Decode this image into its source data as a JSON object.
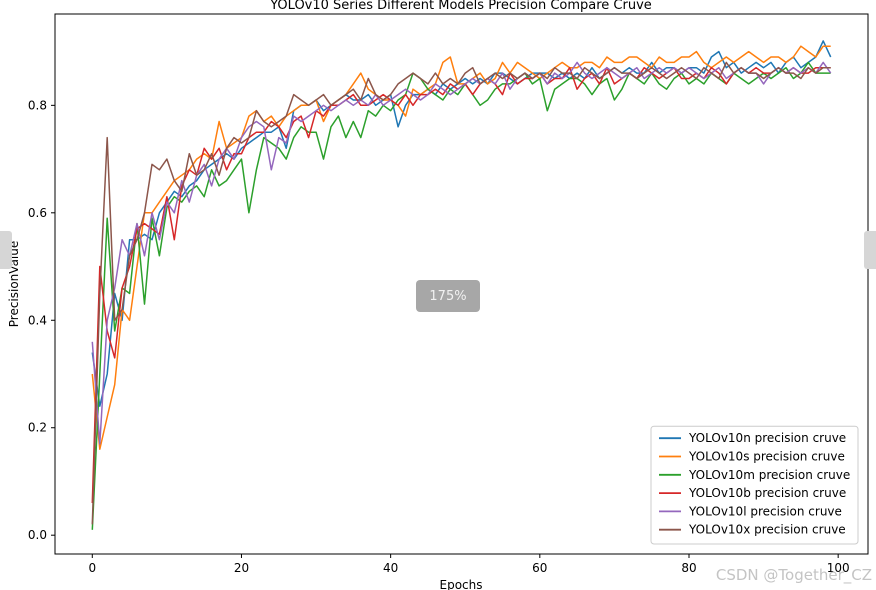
{
  "viewer": {
    "zoom": "175%",
    "watermark": "CSDN @Together_CZ"
  },
  "chart_data": {
    "type": "line",
    "title": "YOLOv10 Series Different Models Precision Compare Cruve",
    "xlabel": "Epochs",
    "ylabel": "PrecisionValue",
    "xlim": [
      -5,
      104
    ],
    "ylim": [
      -0.035,
      0.97
    ],
    "xticks": [
      0,
      20,
      40,
      60,
      80,
      100
    ],
    "yticks": [
      0.0,
      0.2,
      0.4,
      0.6,
      0.8
    ],
    "grid": false,
    "legend_position": "lower-right",
    "series": [
      {
        "name": "YOLOv10n precision cruve",
        "color": "#1f77b4",
        "values": [
          0.34,
          0.24,
          0.3,
          0.45,
          0.4,
          0.55,
          0.55,
          0.56,
          0.55,
          0.6,
          0.62,
          0.64,
          0.63,
          0.65,
          0.66,
          0.68,
          0.69,
          0.7,
          0.71,
          0.7,
          0.72,
          0.73,
          0.74,
          0.75,
          0.75,
          0.76,
          0.72,
          0.79,
          0.8,
          0.8,
          0.81,
          0.79,
          0.8,
          0.81,
          0.82,
          0.81,
          0.81,
          0.82,
          0.8,
          0.81,
          0.82,
          0.76,
          0.8,
          0.82,
          0.82,
          0.83,
          0.82,
          0.84,
          0.83,
          0.84,
          0.85,
          0.84,
          0.85,
          0.84,
          0.86,
          0.86,
          0.85,
          0.84,
          0.85,
          0.86,
          0.86,
          0.86,
          0.85,
          0.86,
          0.85,
          0.86,
          0.85,
          0.87,
          0.85,
          0.86,
          0.87,
          0.86,
          0.87,
          0.86,
          0.86,
          0.88,
          0.86,
          0.87,
          0.87,
          0.86,
          0.87,
          0.87,
          0.86,
          0.89,
          0.9,
          0.87,
          0.88,
          0.86,
          0.87,
          0.88,
          0.87,
          0.88,
          0.86,
          0.88,
          0.89,
          0.87,
          0.88,
          0.89,
          0.92,
          0.89
        ]
      },
      {
        "name": "YOLOv10s precision cruve",
        "color": "#ff7f0e",
        "values": [
          0.3,
          0.16,
          0.22,
          0.28,
          0.42,
          0.4,
          0.5,
          0.6,
          0.6,
          0.62,
          0.64,
          0.66,
          0.67,
          0.68,
          0.7,
          0.71,
          0.7,
          0.77,
          0.72,
          0.73,
          0.74,
          0.78,
          0.79,
          0.77,
          0.78,
          0.76,
          0.78,
          0.79,
          0.8,
          0.8,
          0.81,
          0.77,
          0.8,
          0.81,
          0.82,
          0.84,
          0.86,
          0.83,
          0.82,
          0.81,
          0.81,
          0.8,
          0.78,
          0.83,
          0.82,
          0.83,
          0.84,
          0.88,
          0.89,
          0.84,
          0.84,
          0.85,
          0.86,
          0.84,
          0.85,
          0.88,
          0.86,
          0.88,
          0.87,
          0.86,
          0.85,
          0.86,
          0.87,
          0.88,
          0.87,
          0.87,
          0.88,
          0.88,
          0.87,
          0.89,
          0.88,
          0.88,
          0.89,
          0.89,
          0.88,
          0.87,
          0.89,
          0.88,
          0.88,
          0.89,
          0.89,
          0.9,
          0.88,
          0.87,
          0.88,
          0.89,
          0.88,
          0.89,
          0.9,
          0.89,
          0.88,
          0.89,
          0.89,
          0.88,
          0.89,
          0.91,
          0.9,
          0.89,
          0.91,
          0.91
        ]
      },
      {
        "name": "YOLOv10m precision cruve",
        "color": "#2ca02c",
        "values": [
          0.01,
          0.3,
          0.59,
          0.38,
          0.46,
          0.45,
          0.58,
          0.43,
          0.59,
          0.52,
          0.61,
          0.63,
          0.62,
          0.64,
          0.65,
          0.63,
          0.68,
          0.65,
          0.66,
          0.68,
          0.7,
          0.6,
          0.68,
          0.74,
          0.73,
          0.72,
          0.7,
          0.74,
          0.76,
          0.75,
          0.75,
          0.7,
          0.76,
          0.78,
          0.74,
          0.77,
          0.74,
          0.79,
          0.78,
          0.8,
          0.79,
          0.81,
          0.82,
          0.86,
          0.85,
          0.83,
          0.82,
          0.81,
          0.83,
          0.82,
          0.84,
          0.82,
          0.8,
          0.81,
          0.83,
          0.84,
          0.84,
          0.85,
          0.86,
          0.84,
          0.85,
          0.79,
          0.83,
          0.84,
          0.85,
          0.85,
          0.84,
          0.82,
          0.84,
          0.85,
          0.81,
          0.83,
          0.86,
          0.85,
          0.84,
          0.86,
          0.84,
          0.83,
          0.85,
          0.86,
          0.84,
          0.85,
          0.84,
          0.86,
          0.85,
          0.84,
          0.86,
          0.85,
          0.84,
          0.85,
          0.86,
          0.85,
          0.86,
          0.87,
          0.85,
          0.86,
          0.88,
          0.86,
          0.86,
          0.86
        ]
      },
      {
        "name": "YOLOv10b precision cruve",
        "color": "#d62728",
        "values": [
          0.06,
          0.5,
          0.38,
          0.33,
          0.46,
          0.5,
          0.57,
          0.58,
          0.57,
          0.56,
          0.63,
          0.55,
          0.65,
          0.68,
          0.67,
          0.72,
          0.7,
          0.72,
          0.68,
          0.71,
          0.71,
          0.74,
          0.75,
          0.75,
          0.77,
          0.76,
          0.74,
          0.77,
          0.78,
          0.74,
          0.79,
          0.78,
          0.8,
          0.8,
          0.81,
          0.82,
          0.8,
          0.8,
          0.81,
          0.82,
          0.81,
          0.8,
          0.82,
          0.8,
          0.82,
          0.82,
          0.83,
          0.82,
          0.84,
          0.83,
          0.84,
          0.82,
          0.84,
          0.85,
          0.84,
          0.82,
          0.86,
          0.84,
          0.85,
          0.85,
          0.86,
          0.84,
          0.85,
          0.85,
          0.87,
          0.83,
          0.85,
          0.86,
          0.84,
          0.87,
          0.84,
          0.85,
          0.86,
          0.85,
          0.87,
          0.86,
          0.85,
          0.86,
          0.87,
          0.85,
          0.85,
          0.86,
          0.85,
          0.87,
          0.86,
          0.84,
          0.86,
          0.87,
          0.86,
          0.87,
          0.86,
          0.86,
          0.87,
          0.86,
          0.87,
          0.86,
          0.86,
          0.87,
          0.87,
          0.87
        ]
      },
      {
        "name": "YOLOv10l precision cruve",
        "color": "#9467bd",
        "values": [
          0.36,
          0.17,
          0.4,
          0.46,
          0.55,
          0.52,
          0.58,
          0.52,
          0.6,
          0.55,
          0.62,
          0.6,
          0.66,
          0.62,
          0.67,
          0.69,
          0.65,
          0.7,
          0.72,
          0.7,
          0.74,
          0.76,
          0.77,
          0.76,
          0.68,
          0.74,
          0.73,
          0.78,
          0.77,
          0.78,
          0.79,
          0.8,
          0.79,
          0.8,
          0.81,
          0.8,
          0.81,
          0.8,
          0.82,
          0.8,
          0.81,
          0.82,
          0.83,
          0.82,
          0.81,
          0.82,
          0.84,
          0.83,
          0.82,
          0.83,
          0.84,
          0.85,
          0.84,
          0.85,
          0.84,
          0.86,
          0.83,
          0.85,
          0.86,
          0.85,
          0.86,
          0.84,
          0.86,
          0.85,
          0.86,
          0.88,
          0.86,
          0.85,
          0.86,
          0.87,
          0.86,
          0.85,
          0.86,
          0.87,
          0.85,
          0.86,
          0.87,
          0.86,
          0.87,
          0.86,
          0.87,
          0.86,
          0.85,
          0.86,
          0.87,
          0.85,
          0.86,
          0.87,
          0.86,
          0.86,
          0.84,
          0.86,
          0.87,
          0.86,
          0.87,
          0.86,
          0.87,
          0.86,
          0.88,
          0.86
        ]
      },
      {
        "name": "YOLOv10x precision cruve",
        "color": "#8c564b",
        "values": [
          0.02,
          0.45,
          0.74,
          0.4,
          0.42,
          0.52,
          0.55,
          0.6,
          0.69,
          0.68,
          0.7,
          0.66,
          0.64,
          0.71,
          0.67,
          0.68,
          0.71,
          0.67,
          0.72,
          0.74,
          0.73,
          0.74,
          0.79,
          0.77,
          0.76,
          0.77,
          0.78,
          0.82,
          0.81,
          0.8,
          0.81,
          0.82,
          0.8,
          0.81,
          0.82,
          0.83,
          0.81,
          0.85,
          0.82,
          0.81,
          0.82,
          0.84,
          0.85,
          0.86,
          0.85,
          0.84,
          0.86,
          0.84,
          0.85,
          0.84,
          0.86,
          0.87,
          0.84,
          0.85,
          0.86,
          0.85,
          0.86,
          0.85,
          0.86,
          0.85,
          0.86,
          0.85,
          0.87,
          0.86,
          0.86,
          0.85,
          0.87,
          0.86,
          0.85,
          0.86,
          0.87,
          0.86,
          0.86,
          0.85,
          0.86,
          0.87,
          0.86,
          0.85,
          0.86,
          0.87,
          0.86,
          0.85,
          0.87,
          0.86,
          0.85,
          0.88,
          0.86,
          0.87,
          0.86,
          0.86,
          0.85,
          0.86,
          0.87,
          0.86,
          0.86,
          0.85,
          0.87,
          0.86,
          0.87,
          0.87
        ]
      }
    ]
  }
}
